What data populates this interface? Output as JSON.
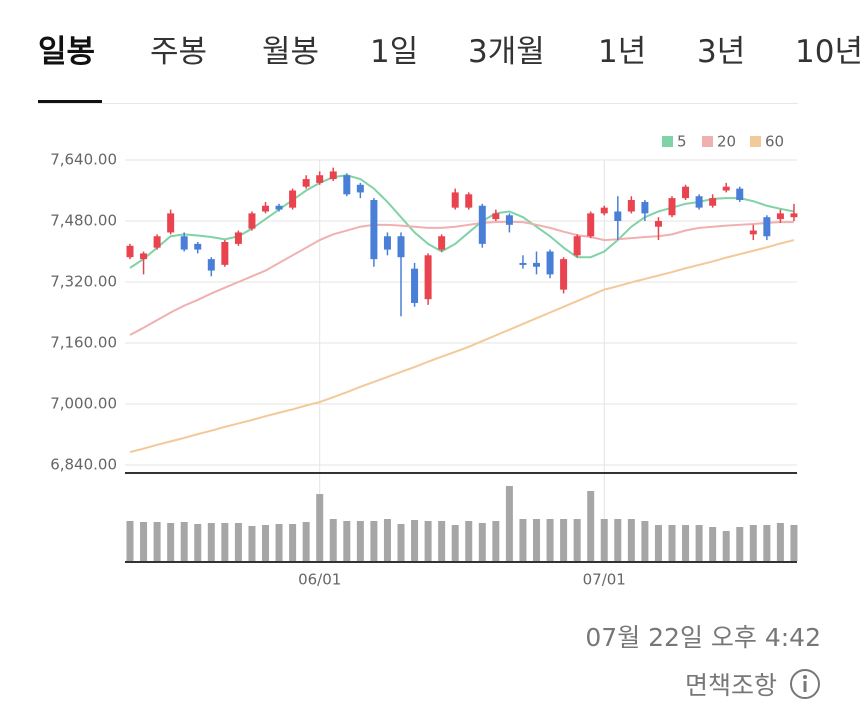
{
  "tabs": [
    "일봉",
    "주봉",
    "월봉",
    "1일",
    "3개월",
    "1년",
    "3년",
    "10년"
  ],
  "chart_data": {
    "type": "candlestick",
    "categories": [
      null,
      null,
      null,
      null,
      null,
      null,
      null,
      null,
      null,
      null,
      null,
      null,
      null,
      null,
      "06/01",
      null,
      null,
      null,
      null,
      null,
      null,
      null,
      null,
      null,
      null,
      null,
      null,
      null,
      null,
      null,
      null,
      null,
      null,
      null,
      null,
      "07/01",
      null,
      null,
      null,
      null,
      null,
      null,
      null,
      null,
      null,
      null,
      null,
      null,
      null,
      null
    ],
    "open": [
      7385,
      7380,
      7410,
      7450,
      7440,
      7420,
      7380,
      7365,
      7420,
      7460,
      7505,
      7520,
      7515,
      7570,
      7580,
      7590,
      7600,
      7575,
      7535,
      7440,
      7440,
      7355,
      7275,
      7405,
      7515,
      7515,
      7520,
      7485,
      7495,
      7370,
      7370,
      7400,
      7300,
      7390,
      7440,
      7500,
      7505,
      7505,
      7530,
      7465,
      7495,
      7540,
      7545,
      7520,
      7560,
      7565,
      7445,
      7490,
      7485,
      7490
    ],
    "high": [
      7420,
      7400,
      7445,
      7510,
      7450,
      7425,
      7385,
      7430,
      7455,
      7505,
      7530,
      7525,
      7565,
      7600,
      7610,
      7620,
      7605,
      7580,
      7540,
      7450,
      7450,
      7370,
      7395,
      7445,
      7565,
      7555,
      7525,
      7510,
      7500,
      7390,
      7400,
      7405,
      7385,
      7445,
      7505,
      7520,
      7545,
      7545,
      7535,
      7490,
      7545,
      7575,
      7550,
      7550,
      7580,
      7570,
      7470,
      7495,
      7510,
      7525
    ],
    "low": [
      7380,
      7340,
      7405,
      7445,
      7400,
      7395,
      7335,
      7360,
      7415,
      7455,
      7500,
      7505,
      7510,
      7565,
      7575,
      7585,
      7545,
      7540,
      7360,
      7390,
      7230,
      7255,
      7260,
      7400,
      7510,
      7510,
      7410,
      7480,
      7450,
      7355,
      7340,
      7330,
      7290,
      7385,
      7435,
      7495,
      7430,
      7500,
      7480,
      7430,
      7490,
      7535,
      7510,
      7515,
      7555,
      7530,
      7430,
      7430,
      7475,
      7480
    ],
    "close": [
      7415,
      7395,
      7440,
      7500,
      7405,
      7405,
      7350,
      7425,
      7450,
      7500,
      7520,
      7510,
      7560,
      7590,
      7600,
      7610,
      7550,
      7555,
      7380,
      7405,
      7385,
      7265,
      7390,
      7440,
      7555,
      7550,
      7420,
      7500,
      7470,
      7365,
      7360,
      7340,
      7380,
      7440,
      7500,
      7515,
      7480,
      7535,
      7500,
      7480,
      7540,
      7570,
      7515,
      7540,
      7570,
      7535,
      7455,
      7440,
      7500,
      7500
    ],
    "up_color": "#e8434e",
    "down_color": "#4a7fd8",
    "moving_averages": [
      {
        "name": "5",
        "color": "#7fd3a6",
        "values": [
          7357,
          7380,
          7410,
          7440,
          7445,
          7442,
          7438,
          7432,
          7440,
          7460,
          7485,
          7510,
          7535,
          7560,
          7580,
          7595,
          7600,
          7590,
          7565,
          7530,
          7490,
          7450,
          7420,
          7400,
          7420,
          7450,
          7480,
          7500,
          7505,
          7490,
          7465,
          7440,
          7410,
          7385,
          7385,
          7400,
          7430,
          7465,
          7490,
          7505,
          7515,
          7525,
          7530,
          7538,
          7540,
          7540,
          7532,
          7520,
          7512,
          7505
        ]
      },
      {
        "name": "20",
        "color": "#f0b0b0",
        "values": [
          7181,
          7200,
          7220,
          7240,
          7258,
          7273,
          7290,
          7305,
          7320,
          7335,
          7350,
          7370,
          7390,
          7410,
          7430,
          7445,
          7455,
          7465,
          7470,
          7470,
          7468,
          7465,
          7462,
          7462,
          7465,
          7470,
          7475,
          7477,
          7478,
          7477,
          7470,
          7462,
          7452,
          7443,
          7438,
          7430,
          7432,
          7435,
          7438,
          7440,
          7445,
          7455,
          7462,
          7465,
          7468,
          7470,
          7472,
          7475,
          7477,
          7477
        ]
      },
      {
        "name": "60",
        "color": "#f3c99a",
        "values": [
          6874,
          6883,
          6893,
          6902,
          6911,
          6921,
          6930,
          6940,
          6949,
          6958,
          6968,
          6977,
          6986,
          6996,
          7005,
          7018,
          7031,
          7045,
          7058,
          7071,
          7084,
          7097,
          7111,
          7124,
          7137,
          7150,
          7165,
          7180,
          7195,
          7210,
          7225,
          7240,
          7255,
          7270,
          7285,
          7300,
          7309,
          7319,
          7328,
          7337,
          7346,
          7356,
          7365,
          7374,
          7384,
          7393,
          7402,
          7411,
          7421,
          7430
        ]
      }
    ],
    "volume": {
      "color": "#a6a6a6",
      "values": [
        40,
        39,
        39,
        38,
        39,
        37,
        38,
        38,
        38,
        35,
        36,
        37,
        37,
        39,
        67,
        42,
        40,
        40,
        40,
        42,
        37,
        41,
        40,
        40,
        36,
        40,
        38,
        40,
        75,
        42,
        42,
        42,
        42,
        42,
        70,
        42,
        42,
        42,
        40,
        36,
        36,
        36,
        36,
        34,
        30,
        34,
        36,
        36,
        38,
        36
      ]
    },
    "ylim": [
      6840,
      7640
    ],
    "yticks": [
      {
        "value": 7640,
        "label": "7,640.00"
      },
      {
        "value": 7480,
        "label": "7,480.00"
      },
      {
        "value": 7320,
        "label": "7,320.00"
      },
      {
        "value": 7160,
        "label": "7,160.00"
      },
      {
        "value": 7000,
        "label": "7,000.00"
      },
      {
        "value": 6840,
        "label": "6,840.00"
      }
    ],
    "grid": true
  },
  "footer": {
    "timestamp": "07월 22일 오후 4:42",
    "disclaimer": "면책조항"
  }
}
